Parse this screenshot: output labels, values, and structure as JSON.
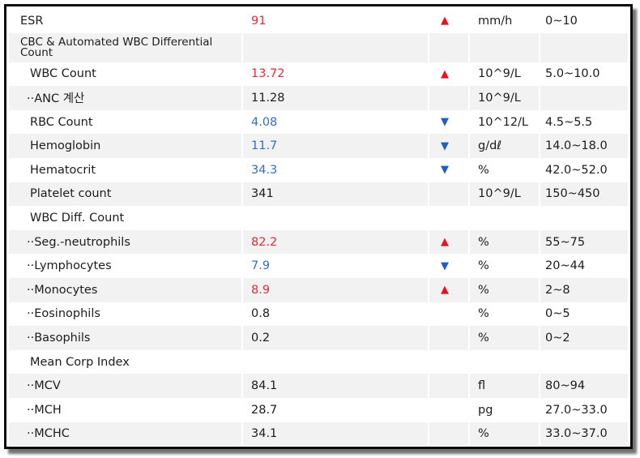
{
  "rows": [
    {
      "name": "ESR",
      "indent": 0,
      "value": "91",
      "status": "high",
      "flag": "▲",
      "unit": "mm/h",
      "ref": "0~10"
    },
    {
      "name": "CBC & Automated WBC Differential Count",
      "indent": 0,
      "value": "",
      "status": "",
      "flag": "",
      "unit": "",
      "ref": "",
      "wrap": true
    },
    {
      "name": "WBC Count",
      "indent": 1,
      "value": "13.72",
      "status": "high",
      "flag": "▲",
      "unit": "10^9/L",
      "ref": "5.0~10.0"
    },
    {
      "name": "··ANC 계산",
      "indent": 2,
      "value": "11.28",
      "status": "",
      "flag": "",
      "unit": "10^9/L",
      "ref": ""
    },
    {
      "name": "RBC Count",
      "indent": 1,
      "value": "4.08",
      "status": "low",
      "flag": "▼",
      "unit": "10^12/L",
      "ref": "4.5~5.5"
    },
    {
      "name": "Hemoglobin",
      "indent": 1,
      "value": "11.7",
      "status": "low",
      "flag": "▼",
      "unit": "g/dℓ",
      "ref": "14.0~18.0"
    },
    {
      "name": "Hematocrit",
      "indent": 1,
      "value": "34.3",
      "status": "low",
      "flag": "▼",
      "unit": "%",
      "ref": "42.0~52.0"
    },
    {
      "name": "Platelet count",
      "indent": 1,
      "value": "341",
      "status": "",
      "flag": "",
      "unit": "10^9/L",
      "ref": "150~450"
    },
    {
      "name": "WBC Diff. Count",
      "indent": 1,
      "value": "",
      "status": "",
      "flag": "",
      "unit": "",
      "ref": ""
    },
    {
      "name": "··Seg.-neutrophils",
      "indent": 2,
      "value": "82.2",
      "status": "high",
      "flag": "▲",
      "unit": "%",
      "ref": "55~75"
    },
    {
      "name": "··Lymphocytes",
      "indent": 2,
      "value": "7.9",
      "status": "low",
      "flag": "▼",
      "unit": "%",
      "ref": "20~44"
    },
    {
      "name": "··Monocytes",
      "indent": 2,
      "value": "8.9",
      "status": "high",
      "flag": "▲",
      "unit": "%",
      "ref": "2~8"
    },
    {
      "name": "··Eosinophils",
      "indent": 2,
      "value": "0.8",
      "status": "",
      "flag": "",
      "unit": "%",
      "ref": "0~5"
    },
    {
      "name": "··Basophils",
      "indent": 2,
      "value": "0.2",
      "status": "",
      "flag": "",
      "unit": "%",
      "ref": "0~2"
    },
    {
      "name": "Mean Corp Index",
      "indent": 1,
      "value": "",
      "status": "",
      "flag": "",
      "unit": "",
      "ref": ""
    },
    {
      "name": "··MCV",
      "indent": 2,
      "value": "84.1",
      "status": "",
      "flag": "",
      "unit": "fl",
      "ref": "80~94"
    },
    {
      "name": "··MCH",
      "indent": 2,
      "value": "28.7",
      "status": "",
      "flag": "",
      "unit": "pg",
      "ref": "27.0~33.0"
    },
    {
      "name": "··MCHC",
      "indent": 2,
      "value": "34.1",
      "status": "",
      "flag": "",
      "unit": "%",
      "ref": "33.0~37.0"
    }
  ],
  "colors": {
    "high": "#e8283a",
    "low": "#2f6fc4",
    "row_alt": "#f2f2f2",
    "border": "#0a0a0a"
  }
}
